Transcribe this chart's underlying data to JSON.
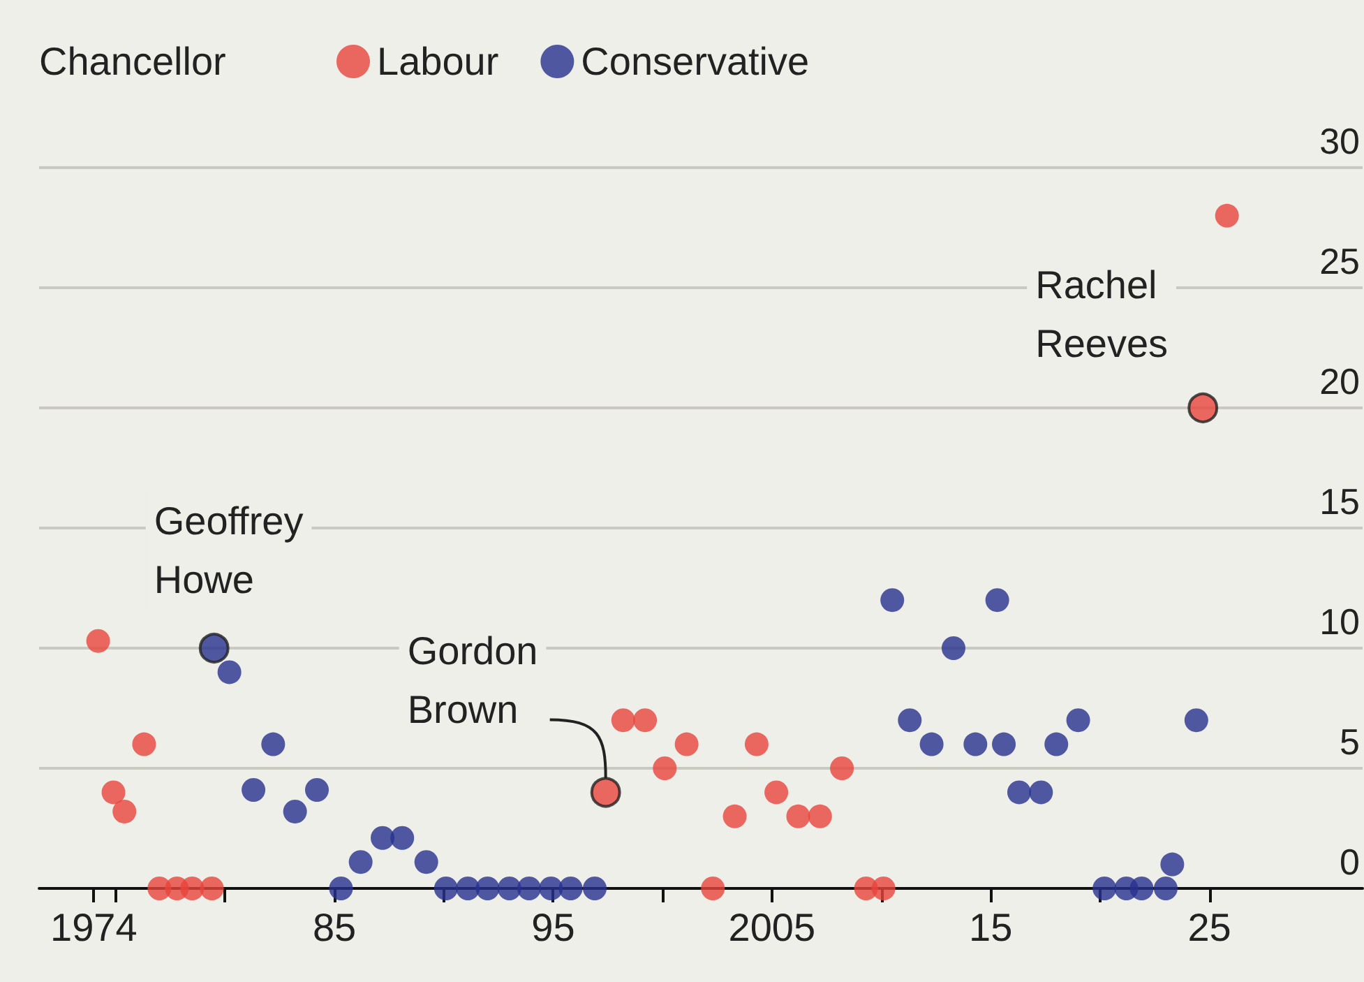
{
  "chart_data": {
    "type": "scatter",
    "legend_title": "Chancellor",
    "legend": "top left",
    "grid": "y",
    "marker": "circle",
    "xlim": [
      1971.5,
      2032
    ],
    "ylim": [
      0,
      30
    ],
    "xticks": [
      {
        "value": 1974,
        "label": "1974"
      },
      {
        "value": 1975,
        "label": null
      },
      {
        "value": 1980,
        "label": null
      },
      {
        "value": 1985,
        "label": "85"
      },
      {
        "value": 1990,
        "label": null
      },
      {
        "value": 1995,
        "label": "95"
      },
      {
        "value": 2000,
        "label": null
      },
      {
        "value": 2005,
        "label": "2005"
      },
      {
        "value": 2010,
        "label": null
      },
      {
        "value": 2015,
        "label": "15"
      },
      {
        "value": 2020,
        "label": null
      },
      {
        "value": 2025,
        "label": "25"
      }
    ],
    "yticks": [
      0,
      5,
      10,
      15,
      20,
      25,
      30
    ],
    "series": [
      {
        "name": "Labour",
        "color": "#e8453c",
        "x": [
          1974.2,
          1974.9,
          1975.4,
          1976.3,
          1977.0,
          1977.8,
          1978.5,
          1979.4,
          1997.4,
          1998.2,
          1999.2,
          2000.1,
          2001.1,
          2002.3,
          2003.3,
          2004.3,
          2005.2,
          2006.2,
          2007.2,
          2008.2,
          2009.3,
          2010.1,
          2024.7,
          2025.8
        ],
        "values": [
          10.3,
          4,
          3.2,
          6,
          0,
          0,
          0,
          0,
          4,
          7,
          7,
          5,
          6,
          0,
          3,
          6,
          4,
          3,
          3,
          5,
          0,
          0,
          20,
          28
        ]
      },
      {
        "name": "Conservative",
        "color": "#27318f",
        "x": [
          1979.5,
          1980.2,
          1981.3,
          1982.2,
          1983.2,
          1984.2,
          1985.3,
          1986.2,
          1987.2,
          1988.1,
          1989.2,
          1990.1,
          1991.1,
          1992.0,
          1993.0,
          1993.9,
          1994.9,
          1995.8,
          1996.9,
          2010.5,
          2011.3,
          2012.3,
          2013.3,
          2014.3,
          2015.3,
          2015.6,
          2016.3,
          2017.3,
          2018.0,
          2019.0,
          2020.2,
          2021.2,
          2021.9,
          2023.0,
          2023.3,
          2024.4
        ],
        "values": [
          10,
          9,
          4.1,
          6,
          3.2,
          4.1,
          0,
          1.1,
          2.1,
          2.1,
          1.1,
          0,
          0,
          0,
          0,
          0,
          0,
          0,
          0,
          12,
          7,
          6,
          10,
          6,
          12,
          6,
          4,
          4,
          6,
          7,
          0,
          0,
          0,
          0,
          1,
          7
        ]
      }
    ],
    "annotations": [
      {
        "text": "Geoffrey\nHowe",
        "x": 1979.5,
        "y": 10
      },
      {
        "text": "Gordon\nBrown",
        "x": 1997.4,
        "y": 4
      },
      {
        "text": "Rachel\nReeves",
        "x": 2024.7,
        "y": 20
      }
    ]
  }
}
